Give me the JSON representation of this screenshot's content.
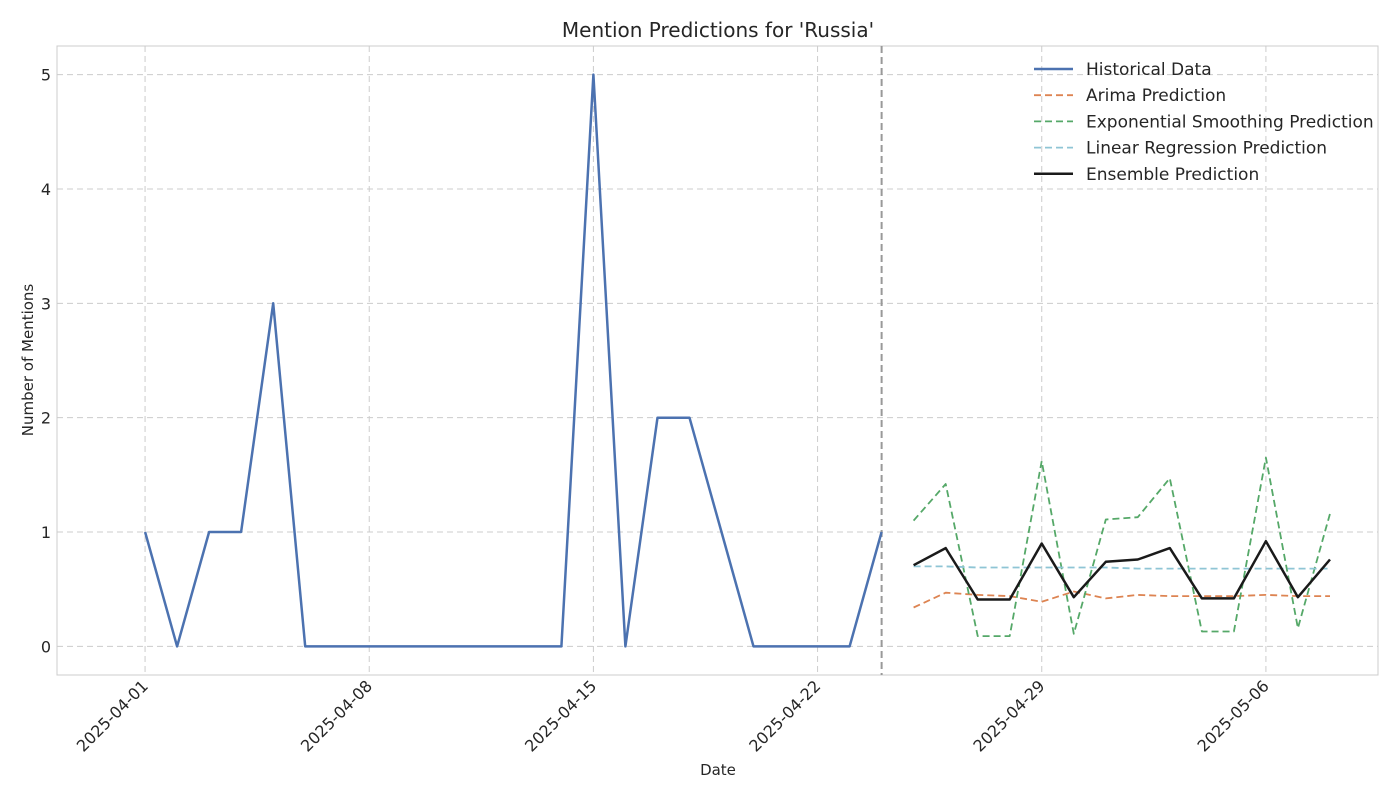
{
  "chart_data": {
    "type": "line",
    "title": "Mention Predictions for 'Russia'",
    "xlabel": "Date",
    "ylabel": "Number of Mentions",
    "x_start": "2025-04-01",
    "ylim": [
      -0.25,
      5.25
    ],
    "xlim_days": [
      -2.75,
      38.5
    ],
    "yticks": [
      0,
      1,
      2,
      3,
      4,
      5
    ],
    "xticks": [
      {
        "day": 0,
        "label": "2025-04-01"
      },
      {
        "day": 7,
        "label": "2025-04-08"
      },
      {
        "day": 14,
        "label": "2025-04-15"
      },
      {
        "day": 21,
        "label": "2025-04-22"
      },
      {
        "day": 28,
        "label": "2025-04-29"
      },
      {
        "day": 35,
        "label": "2025-05-06"
      }
    ],
    "forecast_start_day": 23,
    "grid": true,
    "legend_position": "top-right",
    "series": [
      {
        "name": "Historical Data",
        "color": "#4c72b0",
        "style": "solid",
        "width": 2.5,
        "start_day": 0,
        "values": [
          1,
          0,
          1,
          1,
          3,
          0,
          0,
          0,
          0,
          0,
          0,
          0,
          0,
          0,
          5,
          0,
          2,
          2,
          1,
          0,
          0,
          0,
          0,
          1
        ]
      },
      {
        "name": "Arima Prediction",
        "color": "#dd8452",
        "style": "dashed",
        "width": 1.8,
        "start_day": 24,
        "values": [
          0.34,
          0.47,
          0.45,
          0.44,
          0.39,
          0.48,
          0.42,
          0.45,
          0.44,
          0.44,
          0.44,
          0.45,
          0.44,
          0.44
        ]
      },
      {
        "name": "Exponential Smoothing Prediction",
        "color": "#55a868",
        "style": "dashed",
        "width": 1.8,
        "start_day": 24,
        "values": [
          1.1,
          1.42,
          0.09,
          0.09,
          1.62,
          0.11,
          1.11,
          1.13,
          1.47,
          0.13,
          0.13,
          1.65,
          0.16,
          1.16
        ]
      },
      {
        "name": "Linear Regression Prediction",
        "color": "#8fc5d5",
        "style": "dashed",
        "width": 1.8,
        "start_day": 24,
        "values": [
          0.7,
          0.7,
          0.69,
          0.69,
          0.69,
          0.69,
          0.69,
          0.68,
          0.68,
          0.68,
          0.68,
          0.68,
          0.68,
          0.68
        ]
      },
      {
        "name": "Ensemble Prediction",
        "color": "#1a1a1a",
        "style": "solid",
        "width": 2.5,
        "start_day": 24,
        "values": [
          0.71,
          0.86,
          0.41,
          0.41,
          0.9,
          0.43,
          0.74,
          0.76,
          0.86,
          0.42,
          0.42,
          0.92,
          0.43,
          0.76
        ]
      }
    ]
  }
}
